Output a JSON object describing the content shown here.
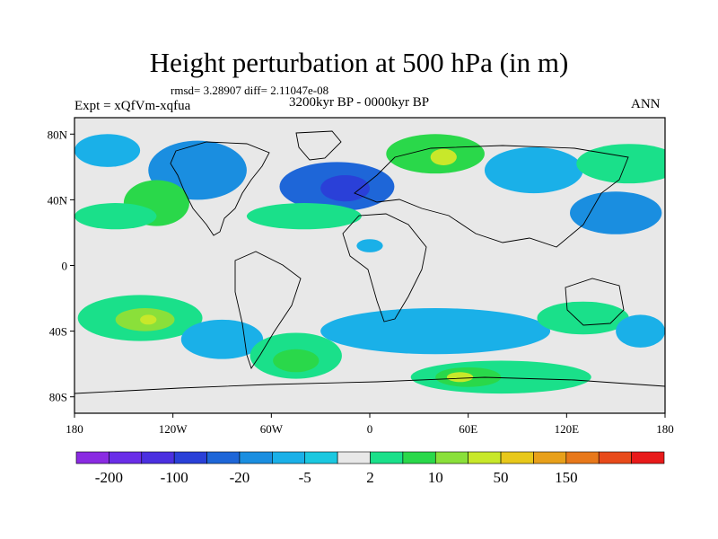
{
  "chart_data": {
    "type": "heatmap",
    "title": "Height perturbation at 500 hPa (in m)",
    "stats_line": "rmsd= 3.28907 diff= 2.11047e-08",
    "experiment_label": "Expt = xQfVm-xqfua",
    "period_label": "3200kyr BP - 0000kyr BP",
    "season_label": "ANN",
    "x_ticks": [
      {
        "lon": -180,
        "label": "180"
      },
      {
        "lon": -120,
        "label": "120W"
      },
      {
        "lon": -60,
        "label": "60W"
      },
      {
        "lon": 0,
        "label": "0"
      },
      {
        "lon": 60,
        "label": "60E"
      },
      {
        "lon": 120,
        "label": "120E"
      },
      {
        "lon": 180,
        "label": "180"
      }
    ],
    "y_ticks": [
      {
        "lat": 80,
        "label": "80N"
      },
      {
        "lat": 40,
        "label": "40N"
      },
      {
        "lat": 0,
        "label": "0"
      },
      {
        "lat": -40,
        "label": "40S"
      },
      {
        "lat": -80,
        "label": "80S"
      }
    ],
    "xlim": [
      -180,
      180
    ],
    "ylim": [
      -90,
      90
    ],
    "colorbar": {
      "colors": [
        "#8a2be2",
        "#6a2ee8",
        "#4b30e0",
        "#2a40d8",
        "#1e66d8",
        "#1a8ee0",
        "#1ab0e8",
        "#1ac8e0",
        "#e8e8e8",
        "#1ae08a",
        "#2ad84a",
        "#8ae03a",
        "#c8e82a",
        "#e8c81a",
        "#e8a01a",
        "#e8781a",
        "#e84a1a",
        "#e81a1a"
      ],
      "labels": [
        {
          "boundary": 1,
          "text": "-200"
        },
        {
          "boundary": 3,
          "text": "-100"
        },
        {
          "boundary": 5,
          "text": "-20"
        },
        {
          "boundary": 7,
          "text": "-5"
        },
        {
          "boundary": 9,
          "text": "2"
        },
        {
          "boundary": 11,
          "text": "10"
        },
        {
          "boundary": 13,
          "text": "50"
        },
        {
          "boundary": 15,
          "text": "150"
        }
      ]
    },
    "field_regions": [
      {
        "name": "field-region-nw-pacific-neg",
        "lon": -160,
        "lat": 70,
        "rlon": 20,
        "rlat": 10,
        "color": "#1ab0e8"
      },
      {
        "name": "field-region-n-america-neg",
        "lon": -105,
        "lat": 58,
        "rlon": 30,
        "rlat": 18,
        "color": "#1a8ee0"
      },
      {
        "name": "field-region-n-atlantic-neg",
        "lon": -20,
        "lat": 48,
        "rlon": 35,
        "rlat": 15,
        "color": "#1e66d8"
      },
      {
        "name": "field-region-n-atlantic-core",
        "lon": -15,
        "lat": 47,
        "rlon": 15,
        "rlat": 8,
        "color": "#2a40d8"
      },
      {
        "name": "field-region-europe-pos",
        "lon": 40,
        "lat": 68,
        "rlon": 30,
        "rlat": 12,
        "color": "#2ad84a"
      },
      {
        "name": "field-region-europe-core",
        "lon": 45,
        "lat": 66,
        "rlon": 8,
        "rlat": 5,
        "color": "#c8e82a"
      },
      {
        "name": "field-region-siberia-neg",
        "lon": 100,
        "lat": 58,
        "rlon": 30,
        "rlat": 14,
        "color": "#1ab0e8"
      },
      {
        "name": "field-region-e-asia-pos",
        "lon": 158,
        "lat": 62,
        "rlon": 32,
        "rlat": 12,
        "color": "#1ae08a"
      },
      {
        "name": "field-region-nw-pacific-neg2",
        "lon": 150,
        "lat": 32,
        "rlon": 28,
        "rlat": 13,
        "color": "#1a8ee0"
      },
      {
        "name": "field-region-ne-pacific-pos",
        "lon": -130,
        "lat": 38,
        "rlon": 20,
        "rlat": 14,
        "color": "#2ad84a"
      },
      {
        "name": "field-region-pacific-band-pos",
        "lon": -155,
        "lat": 30,
        "rlon": 25,
        "rlat": 8,
        "color": "#1ae08a"
      },
      {
        "name": "field-region-atlantic-band-pos",
        "lon": -40,
        "lat": 30,
        "rlon": 35,
        "rlat": 8,
        "color": "#1ae08a"
      },
      {
        "name": "field-region-sahara-neg",
        "lon": 0,
        "lat": 12,
        "rlon": 8,
        "rlat": 4,
        "color": "#1ab0e8"
      },
      {
        "name": "field-region-s-pacific-pos",
        "lon": -140,
        "lat": -32,
        "rlon": 38,
        "rlat": 14,
        "color": "#1ae08a"
      },
      {
        "name": "field-region-s-pacific-core",
        "lon": -137,
        "lat": -33,
        "rlon": 18,
        "rlat": 7,
        "color": "#8ae03a"
      },
      {
        "name": "field-region-s-pacific-peak",
        "lon": -135,
        "lat": -33,
        "rlon": 5,
        "rlat": 3,
        "color": "#c8e82a"
      },
      {
        "name": "field-region-s-america-neg",
        "lon": -90,
        "lat": -45,
        "rlon": 25,
        "rlat": 12,
        "color": "#1ab0e8"
      },
      {
        "name": "field-region-s-atlantic-pos",
        "lon": -45,
        "lat": -55,
        "rlon": 28,
        "rlat": 14,
        "color": "#1ae08a"
      },
      {
        "name": "field-region-s-atlantic-core",
        "lon": -45,
        "lat": -58,
        "rlon": 14,
        "rlat": 7,
        "color": "#2ad84a"
      },
      {
        "name": "field-region-s-indian-neg",
        "lon": 40,
        "lat": -40,
        "rlon": 70,
        "rlat": 14,
        "color": "#1ab0e8"
      },
      {
        "name": "field-region-southern-ocean-pos",
        "lon": 80,
        "lat": -68,
        "rlon": 55,
        "rlat": 10,
        "color": "#1ae08a"
      },
      {
        "name": "field-region-southern-ocean-core",
        "lon": 60,
        "lat": -68,
        "rlon": 20,
        "rlat": 6,
        "color": "#2ad84a"
      },
      {
        "name": "field-region-southern-ocean-peak",
        "lon": 55,
        "lat": -68,
        "rlon": 8,
        "rlat": 3,
        "color": "#c8e82a"
      },
      {
        "name": "field-region-australia-pos",
        "lon": 130,
        "lat": -32,
        "rlon": 28,
        "rlat": 10,
        "color": "#1ae08a"
      },
      {
        "name": "field-region-tasman-neg",
        "lon": 165,
        "lat": -40,
        "rlon": 15,
        "rlat": 10,
        "color": "#1ab0e8"
      }
    ]
  }
}
